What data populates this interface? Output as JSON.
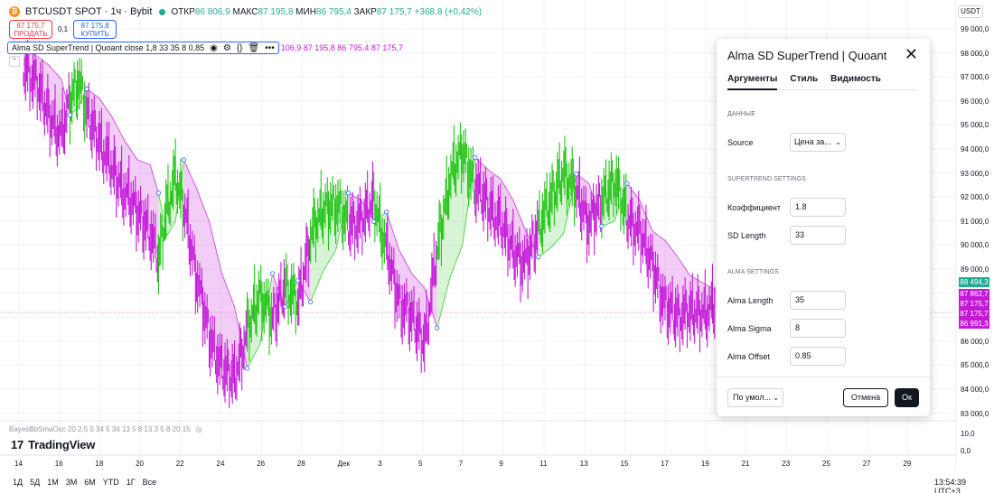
{
  "header": {
    "symbol": "BTCUSDT SPOT · 1ч · Bybit",
    "open_label": "ОТКР",
    "open_value": "86 806,9",
    "high_label": "МАКС",
    "high_value": "87 195,8",
    "low_label": "МИН",
    "low_value": "86 795,4",
    "close_label": "ЗАКР",
    "close_value": "87 175,7",
    "change": "+368,8 (+0,42%)"
  },
  "trade": {
    "sell_price": "87 175,7",
    "sell_label": "ПРОДАТЬ",
    "spread": "0,1",
    "buy_price": "87 175,8",
    "buy_label": "КУПИТЬ"
  },
  "indicator": {
    "title": "Alma SD SuperTrend | Quoant close 1,8 33 35 8 0,85",
    "values": "106,9  87 195,8  86 795,4  87 175,7"
  },
  "price_axis": {
    "currency": "USDT",
    "ticks": [
      "99 000,0",
      "98 000,0",
      "97 000,0",
      "96 000,0",
      "95 000,0",
      "94 000,0",
      "93 000,0",
      "92 000,0",
      "91 000,0",
      "90 000,0",
      "89 000,0",
      "88 000,0",
      "87 000,0",
      "86 000,0",
      "85 000,0",
      "84 000,0",
      "83 000,0"
    ],
    "labels": [
      {
        "text": "88 494,3",
        "color": "#22ab94"
      },
      {
        "text": "87 862,7",
        "color": "#c41ad8"
      },
      {
        "text": "87 175,7",
        "color": "#c41ad8"
      },
      {
        "text": "87 175,7",
        "color": "#c41ad8"
      },
      {
        "text": "86 991,3",
        "color": "#c41ad8"
      }
    ],
    "osc_ticks": [
      "10,0",
      "0,0"
    ]
  },
  "oscillator": {
    "label": "BayesBbSmaOsc 20 2,5 5 34 5 34 13 5 8 13 3 5 8 20 15"
  },
  "brand": "TradingView",
  "time_axis": [
    "14",
    "16",
    "18",
    "20",
    "22",
    "24",
    "26",
    "28",
    "Дек",
    "3",
    "5",
    "7",
    "9",
    "11",
    "13",
    "15",
    "17",
    "19",
    "21",
    "23",
    "25",
    "27",
    "29"
  ],
  "ranges": [
    "1Д",
    "5Д",
    "1М",
    "3М",
    "6М",
    "YTD",
    "1Г",
    "Все"
  ],
  "clock": "13:54:39 UTC+3",
  "dialog": {
    "title": "Alma SD SuperTrend | Quoant",
    "tabs": [
      "Аргументы",
      "Стиль",
      "Видимость"
    ],
    "section_data": "ДАННЫЕ",
    "source_label": "Source",
    "source_value": "Цена за...",
    "section_supertrend": "SUPERTREND SETTINGS",
    "coef_label": "Коэффициент",
    "coef_value": "1.8",
    "sd_label": "SD Length",
    "sd_value": "33",
    "section_alma": "ALMA SETTINGS",
    "alma_length_label": "Alma Length",
    "alma_length_value": "35",
    "alma_sigma_label": "Alma Sigma",
    "alma_sigma_value": "8",
    "alma_offset_label": "Alma Offset",
    "alma_offset_value": "0.85",
    "defaults_label": "По умол...",
    "cancel_label": "Отмена",
    "ok_label": "Ок"
  },
  "chart_data": {
    "type": "line",
    "up_color": "#22c416",
    "down_color": "#c41ad8",
    "y_range": [
      82500,
      99500
    ],
    "trend": [
      {
        "i": 0,
        "close": 97400,
        "st": 98200,
        "dir": -1
      },
      {
        "i": 3,
        "close": 96600,
        "st": 97800,
        "dir": -1
      },
      {
        "i": 6,
        "close": 95300,
        "st": 97400,
        "dir": -1
      },
      {
        "i": 9,
        "close": 94400,
        "st": 96800,
        "dir": -1
      },
      {
        "i": 11,
        "close": 95900,
        "st": 95300,
        "dir": 1
      },
      {
        "i": 13,
        "close": 96800,
        "st": 95600,
        "dir": 1
      },
      {
        "i": 15,
        "close": 95300,
        "st": 96400,
        "dir": -1
      },
      {
        "i": 18,
        "close": 94200,
        "st": 96000,
        "dir": -1
      },
      {
        "i": 21,
        "close": 93000,
        "st": 95200,
        "dir": -1
      },
      {
        "i": 24,
        "close": 92000,
        "st": 94200,
        "dir": -1
      },
      {
        "i": 27,
        "close": 91200,
        "st": 93400,
        "dir": -1
      },
      {
        "i": 30,
        "close": 90400,
        "st": 93200,
        "dir": -1
      },
      {
        "i": 32,
        "close": 89100,
        "st": 92000,
        "dir": 1
      },
      {
        "i": 34,
        "close": 91500,
        "st": 90200,
        "dir": 1
      },
      {
        "i": 36,
        "close": 92600,
        "st": 90800,
        "dir": 1
      },
      {
        "i": 38,
        "close": 91400,
        "st": 93400,
        "dir": -1
      },
      {
        "i": 41,
        "close": 88500,
        "st": 92200,
        "dir": -1
      },
      {
        "i": 44,
        "close": 86000,
        "st": 90800,
        "dir": -1
      },
      {
        "i": 47,
        "close": 84500,
        "st": 88600,
        "dir": -1
      },
      {
        "i": 50,
        "close": 84200,
        "st": 87200,
        "dir": -1
      },
      {
        "i": 53,
        "close": 86200,
        "st": 84600,
        "dir": 1
      },
      {
        "i": 56,
        "close": 87800,
        "st": 85600,
        "dir": 1
      },
      {
        "i": 59,
        "close": 86600,
        "st": 88600,
        "dir": -1
      },
      {
        "i": 62,
        "close": 88200,
        "st": 87200,
        "dir": 1
      },
      {
        "i": 65,
        "close": 87300,
        "st": 88300,
        "dir": -1
      },
      {
        "i": 68,
        "close": 90200,
        "st": 87400,
        "dir": 1
      },
      {
        "i": 71,
        "close": 91300,
        "st": 88700,
        "dir": 1
      },
      {
        "i": 74,
        "close": 91600,
        "st": 89600,
        "dir": 1
      },
      {
        "i": 77,
        "close": 90700,
        "st": 92000,
        "dir": -1
      },
      {
        "i": 80,
        "close": 90700,
        "st": 91700,
        "dir": -1
      },
      {
        "i": 83,
        "close": 91800,
        "st": 90800,
        "dir": 1
      },
      {
        "i": 86,
        "close": 89600,
        "st": 91200,
        "dir": -1
      },
      {
        "i": 89,
        "close": 87400,
        "st": 89600,
        "dir": -1
      },
      {
        "i": 92,
        "close": 86700,
        "st": 88600,
        "dir": -1
      },
      {
        "i": 95,
        "close": 85700,
        "st": 88000,
        "dir": -1
      },
      {
        "i": 98,
        "close": 89600,
        "st": 86300,
        "dir": 1
      },
      {
        "i": 101,
        "close": 92600,
        "st": 88400,
        "dir": 1
      },
      {
        "i": 104,
        "close": 93800,
        "st": 89800,
        "dir": 1
      },
      {
        "i": 107,
        "close": 92300,
        "st": 93500,
        "dir": -1
      },
      {
        "i": 110,
        "close": 91500,
        "st": 93000,
        "dir": -1
      },
      {
        "i": 113,
        "close": 90700,
        "st": 92600,
        "dir": -1
      },
      {
        "i": 116,
        "close": 89600,
        "st": 91700,
        "dir": -1
      },
      {
        "i": 119,
        "close": 89000,
        "st": 90400,
        "dir": -1
      },
      {
        "i": 122,
        "close": 90600,
        "st": 89300,
        "dir": 1
      },
      {
        "i": 125,
        "close": 91700,
        "st": 89700,
        "dir": 1
      },
      {
        "i": 128,
        "close": 93000,
        "st": 90300,
        "dir": 1
      },
      {
        "i": 131,
        "close": 92000,
        "st": 92800,
        "dir": -1
      },
      {
        "i": 134,
        "close": 90700,
        "st": 92400,
        "dir": -1
      },
      {
        "i": 137,
        "close": 91700,
        "st": 90600,
        "dir": 1
      },
      {
        "i": 140,
        "close": 92600,
        "st": 90800,
        "dir": 1
      },
      {
        "i": 143,
        "close": 91000,
        "st": 92400,
        "dir": -1
      },
      {
        "i": 146,
        "close": 90300,
        "st": 91700,
        "dir": -1
      },
      {
        "i": 149,
        "close": 89000,
        "st": 90400,
        "dir": -1
      },
      {
        "i": 152,
        "close": 87200,
        "st": 90000,
        "dir": -1
      },
      {
        "i": 155,
        "close": 86800,
        "st": 89300,
        "dir": -1
      },
      {
        "i": 158,
        "close": 86900,
        "st": 88500,
        "dir": -1
      },
      {
        "i": 161,
        "close": 87000,
        "st": 88200,
        "dir": -1
      },
      {
        "i": 164,
        "close": 87200,
        "st": 87900,
        "dir": -1
      }
    ]
  }
}
